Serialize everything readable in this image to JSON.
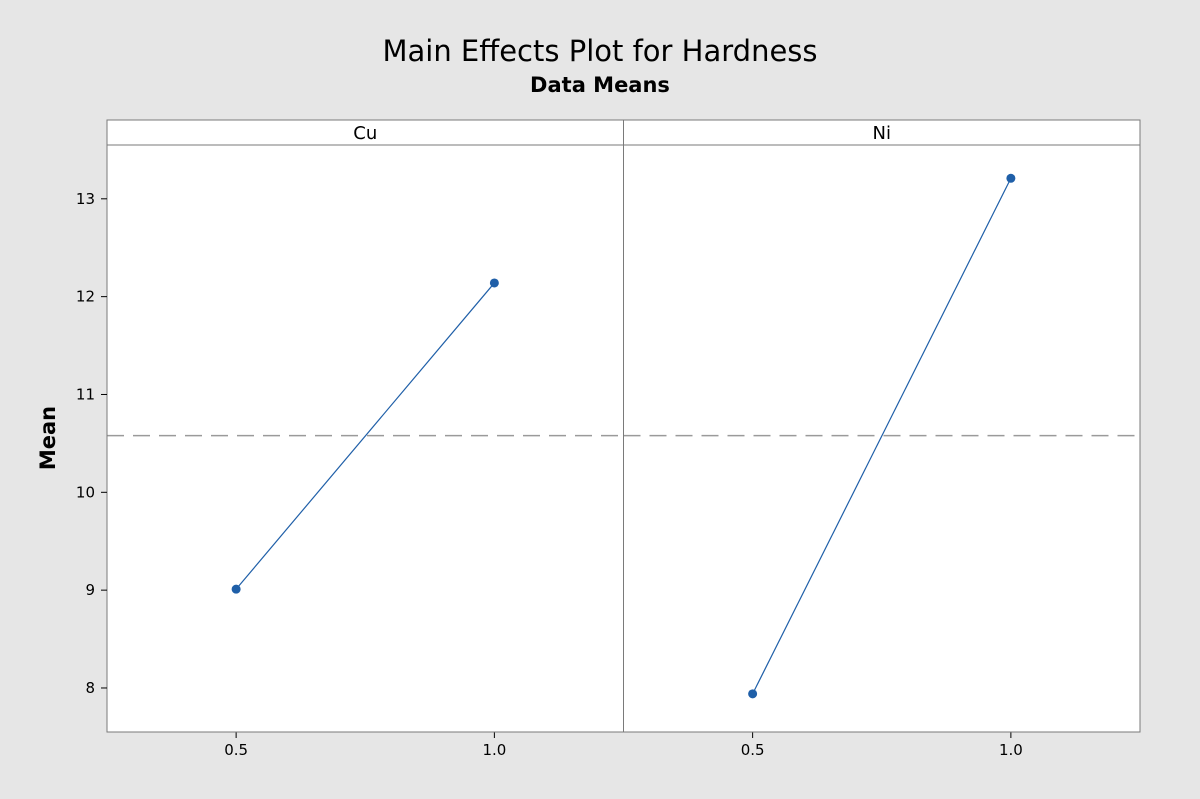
{
  "chart_data": {
    "type": "line",
    "title": "Main Effects Plot for Hardness",
    "subtitle": "Data Means",
    "ylabel": "Mean",
    "ylim": [
      7.55,
      13.55
    ],
    "yticks": [
      8,
      9,
      10,
      11,
      12,
      13
    ],
    "xlim": [
      0.25,
      1.25
    ],
    "reference_line": 10.58,
    "grid": false,
    "colors": {
      "series": "#1f5fa8",
      "reference": "#9a9a9a",
      "frame_border": "#7a7a7a"
    },
    "panels": [
      {
        "label": "Cu",
        "x": [
          "0.5",
          "1.0"
        ],
        "values": [
          9.01,
          12.14
        ]
      },
      {
        "label": "Ni",
        "x": [
          "0.5",
          "1.0"
        ],
        "values": [
          7.94,
          13.21
        ]
      }
    ]
  }
}
